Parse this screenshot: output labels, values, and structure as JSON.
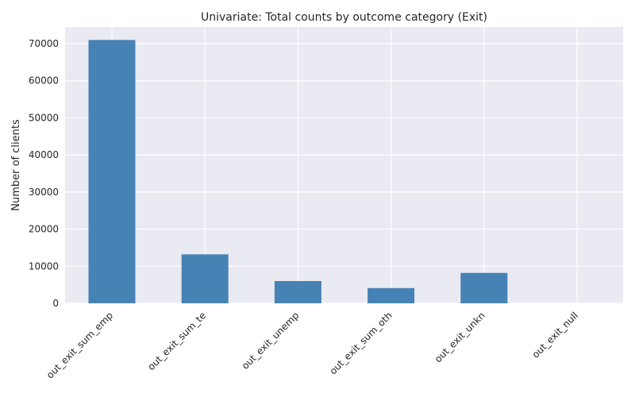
{
  "chart_data": {
    "type": "bar",
    "title": "Univariate: Total counts by outcome category (Exit)",
    "xlabel": "",
    "ylabel": "Number of clients",
    "categories": [
      "out_exit_sum_emp",
      "out_exit_sum_te",
      "out_exit_unemp",
      "out_exit_sum_oth",
      "out_exit_unkn",
      "out_exit_null"
    ],
    "values": [
      71000,
      13200,
      6000,
      4100,
      8200,
      0
    ],
    "ylim": [
      0,
      74500
    ],
    "yticks": [
      0,
      10000,
      20000,
      30000,
      40000,
      50000,
      60000,
      70000
    ],
    "ytick_labels": [
      "0",
      "10000",
      "20000",
      "30000",
      "40000",
      "50000",
      "60000",
      "70000"
    ],
    "grid": true,
    "bar_color": "#4682b4",
    "background_color": "#eaeaf2"
  }
}
